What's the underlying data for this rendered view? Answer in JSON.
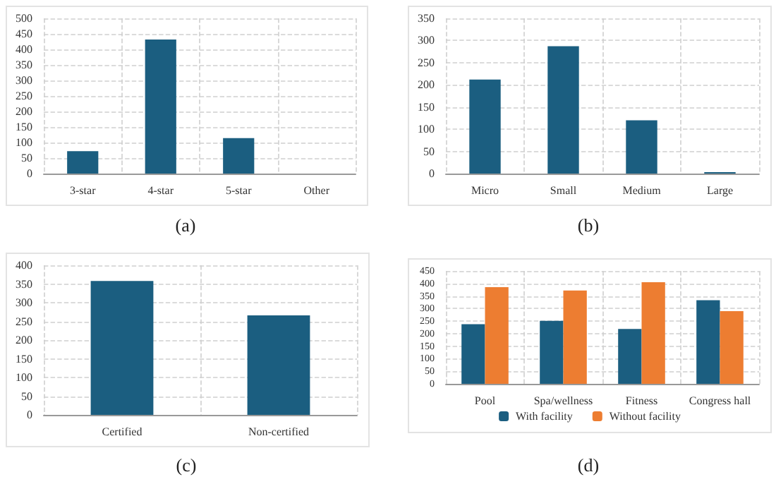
{
  "chart_data": [
    {
      "type": "bar",
      "categories": [
        "3-star",
        "4-star",
        "5-star",
        "Other"
      ],
      "values": [
        72,
        432,
        114,
        0
      ],
      "color": "#1b5e80",
      "ylim": [
        0,
        500
      ],
      "yticks": [
        0,
        50,
        100,
        150,
        200,
        250,
        300,
        350,
        400,
        450,
        500
      ],
      "grid": true,
      "annotations": [
        "(a)"
      ]
    },
    {
      "type": "bar",
      "categories": [
        "Micro",
        "Small",
        "Medium",
        "Large"
      ],
      "values": [
        212,
        287,
        120,
        3
      ],
      "color": "#1b5e80",
      "ylim": [
        0,
        350
      ],
      "yticks": [
        0,
        50,
        100,
        150,
        200,
        250,
        300,
        350
      ],
      "grid": true,
      "annotations": [
        "(b)"
      ]
    },
    {
      "type": "bar",
      "categories": [
        "Certified",
        "Non-certified"
      ],
      "values": [
        358,
        266
      ],
      "color": "#1b5e80",
      "ylim": [
        0,
        400
      ],
      "yticks": [
        0,
        50,
        100,
        150,
        200,
        250,
        300,
        350,
        400
      ],
      "grid": true,
      "annotations": [
        "(c)"
      ]
    },
    {
      "type": "bar",
      "categories": [
        "Pool",
        "Spa/wellness",
        "Fitness",
        "Congress hall"
      ],
      "series": [
        {
          "name": "With facility",
          "color": "#1b5e80",
          "values": [
            238,
            251,
            219,
            333
          ]
        },
        {
          "name": "Without facility",
          "color": "#ed7d31",
          "values": [
            385,
            372,
            405,
            290
          ]
        }
      ],
      "ylim": [
        0,
        450
      ],
      "yticks": [
        0,
        50,
        100,
        150,
        200,
        250,
        300,
        350,
        400,
        450
      ],
      "grid": true,
      "legend": "bottom",
      "annotations": [
        "(d)"
      ]
    }
  ]
}
